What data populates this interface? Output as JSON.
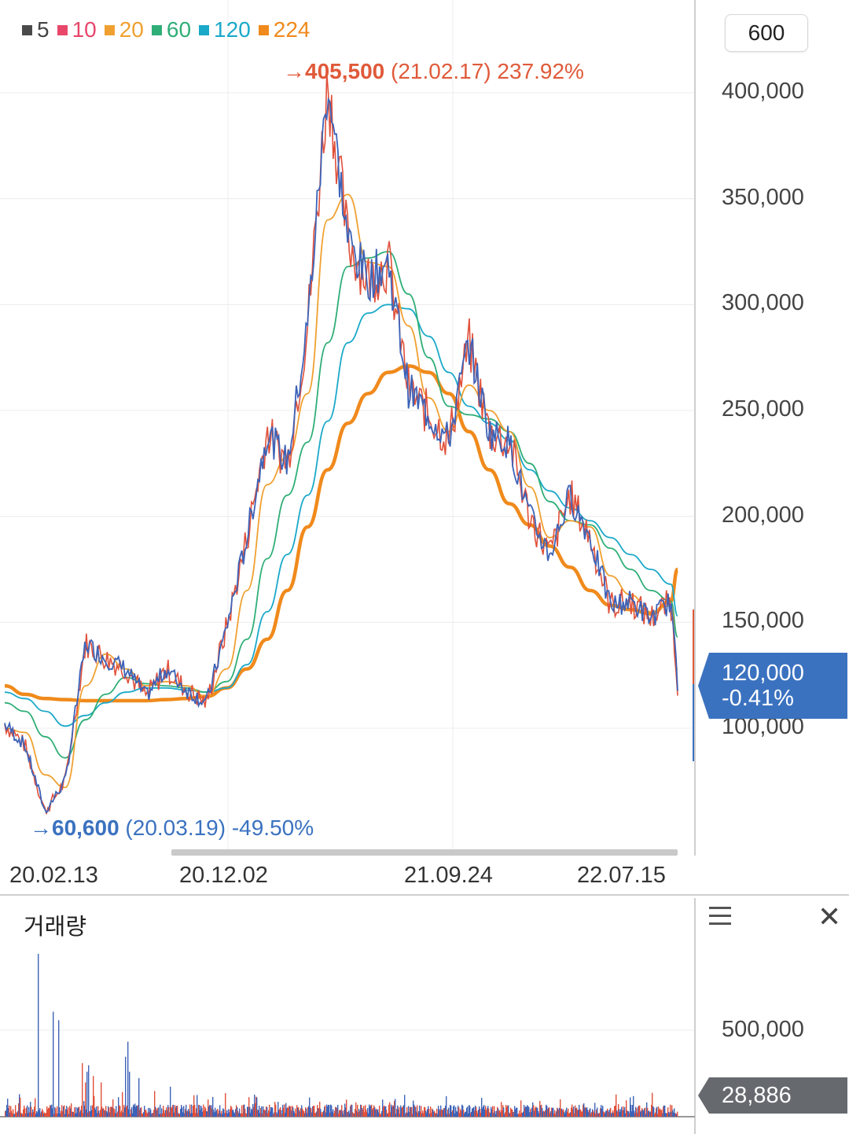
{
  "legend": [
    {
      "label": "5",
      "color": "#4a4a4a"
    },
    {
      "label": "10",
      "color": "#e8476a"
    },
    {
      "label": "20",
      "color": "#f0a030"
    },
    {
      "label": "60",
      "color": "#2fae77"
    },
    {
      "label": "120",
      "color": "#1aa9c9"
    },
    {
      "label": "224",
      "color": "#f08a1c"
    }
  ],
  "interval": "600",
  "annotations": {
    "high": {
      "arrow": "→",
      "value": "405,500",
      "detail": "(21.02.17) 237.92%",
      "color": "#e05a3a"
    },
    "low": {
      "arrow": "→",
      "value": "60,600",
      "detail": "(20.03.19) -49.50%",
      "color": "#3b72c0"
    }
  },
  "current": {
    "price": "120,000",
    "change": "-0.41%"
  },
  "volume": {
    "title": "거래량",
    "axis_label": "500,000",
    "current": "28,886"
  },
  "chart_data": {
    "type": "line",
    "x_ticks": [
      "20.02.13",
      "20.12.02",
      "21.09.24",
      "22.07.15"
    ],
    "y_ticks": [
      "100,000",
      "150,000",
      "200,000",
      "250,000",
      "300,000",
      "350,000",
      "400,000"
    ],
    "ylim": [
      40000,
      420000
    ],
    "grid": true,
    "legend_position": "top-left",
    "x_index": [
      0,
      3,
      6,
      9,
      12,
      15,
      18,
      21,
      24,
      27,
      30,
      33,
      36,
      39,
      42,
      45,
      48,
      51,
      54,
      57,
      60,
      63,
      66,
      69,
      72,
      75,
      78,
      81,
      84,
      87,
      90,
      93,
      96,
      99,
      100
    ],
    "price": [
      102000,
      92000,
      60600,
      75000,
      140000,
      133000,
      128000,
      115000,
      128000,
      118000,
      112000,
      148000,
      190000,
      240000,
      225000,
      290000,
      405500,
      330000,
      312000,
      320000,
      260000,
      248000,
      236000,
      282000,
      240000,
      235000,
      200000,
      182000,
      210000,
      190000,
      158000,
      160000,
      152000,
      160000,
      120000
    ],
    "ma20": [
      100000,
      98000,
      78000,
      72000,
      120000,
      135000,
      128000,
      120000,
      122000,
      120000,
      115000,
      128000,
      165000,
      215000,
      228000,
      258000,
      340000,
      352000,
      320000,
      318000,
      290000,
      256000,
      240000,
      262000,
      250000,
      240000,
      214000,
      190000,
      198000,
      195000,
      172000,
      163000,
      155000,
      158000,
      128000
    ],
    "ma60": [
      112000,
      108000,
      96000,
      86000,
      104000,
      116000,
      124000,
      121000,
      120000,
      119000,
      117000,
      122000,
      142000,
      180000,
      210000,
      235000,
      282000,
      318000,
      322000,
      325000,
      305000,
      275000,
      252000,
      248000,
      246000,
      240000,
      225000,
      207000,
      198000,
      196000,
      185000,
      175000,
      165000,
      160000,
      143000
    ],
    "ma120": [
      117000,
      114000,
      108000,
      101000,
      106000,
      112000,
      117000,
      119000,
      119000,
      118000,
      117000,
      119000,
      130000,
      155000,
      182000,
      210000,
      245000,
      282000,
      296000,
      300000,
      298000,
      285000,
      268000,
      252000,
      244000,
      236000,
      222000,
      212000,
      204000,
      198000,
      190000,
      182000,
      175000,
      168000,
      153000
    ],
    "ma224": [
      120000,
      116000,
      114000,
      113500,
      113000,
      113000,
      113000,
      113000,
      113500,
      114000,
      115000,
      119000,
      128000,
      142000,
      165000,
      195000,
      222000,
      244000,
      258000,
      268000,
      271000,
      268000,
      258000,
      240000,
      222000,
      206000,
      196000,
      186000,
      176000,
      165000,
      158000,
      156000,
      154000,
      160000,
      175000
    ],
    "volume": {
      "ylim": [
        0,
        800000
      ],
      "spikes": [
        [
          42,
          760000
        ],
        [
          42.5,
          520000
        ],
        [
          61,
          490000
        ],
        [
          68,
          450000
        ],
        [
          98,
          250000
        ],
        [
          102,
          160000
        ],
        [
          104,
          210000
        ],
        [
          106,
          240000
        ],
        [
          112,
          190000
        ],
        [
          122,
          160000
        ],
        [
          153,
          280000
        ],
        [
          156,
          350000
        ],
        [
          158,
          210000
        ],
        [
          170,
          180000
        ],
        [
          190,
          120000
        ],
        [
          210,
          140000
        ],
        [
          240,
          100000
        ],
        [
          280,
          110000
        ],
        [
          320,
          90000
        ],
        [
          400,
          70000
        ],
        [
          480,
          80000
        ]
      ]
    }
  }
}
